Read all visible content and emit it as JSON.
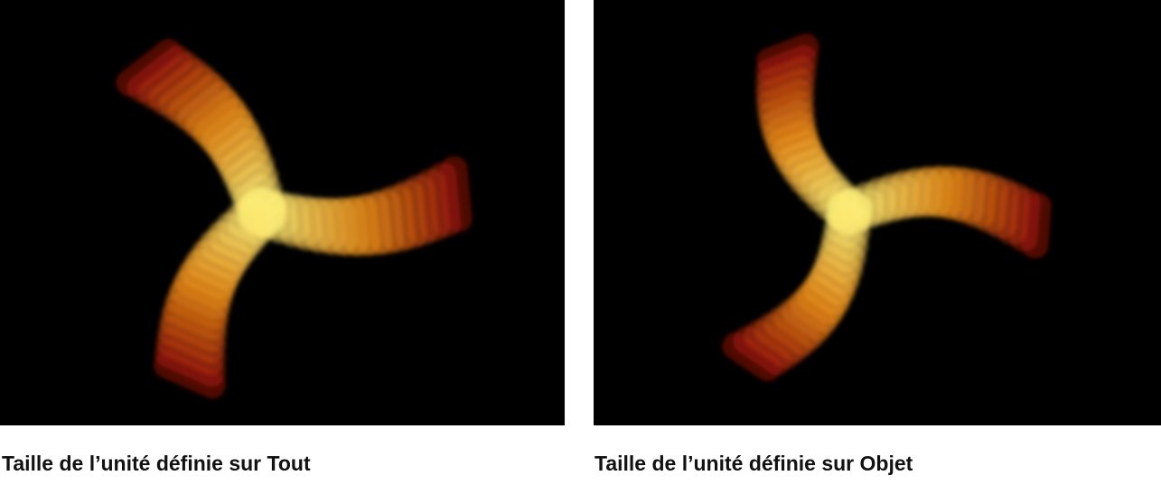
{
  "figures": [
    {
      "caption": "Taille de l’unité définie sur Tout",
      "colors": {
        "inner": "#fff27a",
        "mid": "#ff9a1a",
        "outer": "#b0150a"
      }
    },
    {
      "caption": "Taille de l’unité définie sur Objet",
      "colors": {
        "inner": "#fff27a",
        "mid": "#ff9a1a",
        "outer": "#b0150a"
      }
    }
  ]
}
